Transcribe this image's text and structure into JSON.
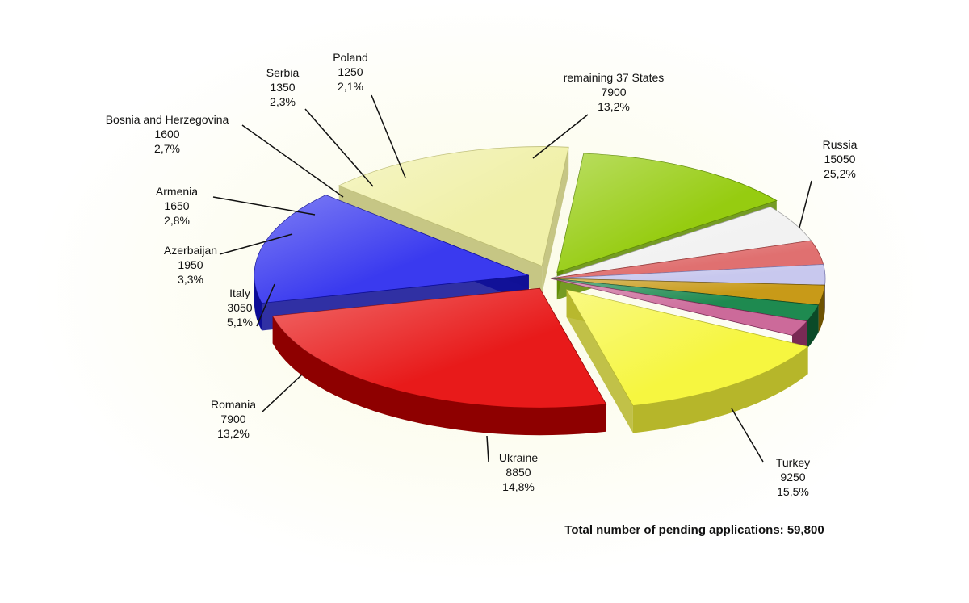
{
  "chart_data": {
    "type": "pie",
    "title": "",
    "slices": [
      {
        "label": "Russia",
        "value": 15050,
        "percent": "25,2%",
        "color": "#e81a1a",
        "side": "#8e0000"
      },
      {
        "label": "Turkey",
        "value": 9250,
        "percent": "15,5%",
        "color": "#3a3aef",
        "side": "#0c0c96"
      },
      {
        "label": "Ukraine",
        "value": 8850,
        "percent": "14,8%",
        "color": "#f0f0a8",
        "side": "#bcbc72"
      },
      {
        "label": "Romania",
        "value": 7900,
        "percent": "13,2%",
        "color": "#96cc10",
        "side": "#5d8a00"
      },
      {
        "label": "Italy",
        "value": 3050,
        "percent": "5,1%",
        "color": "#f2f2f2",
        "side": "#9a9a9a"
      },
      {
        "label": "Azerbaijan",
        "value": 1950,
        "percent": "3,3%",
        "color": "#e07070",
        "side": "#9a3a3a"
      },
      {
        "label": "Armenia",
        "value": 1650,
        "percent": "2,8%",
        "color": "#c8c8ee",
        "side": "#7a7ab0"
      },
      {
        "label": "Bosnia and Herzegovina",
        "value": 1600,
        "percent": "2,7%",
        "color": "#c89a18",
        "side": "#6e5200"
      },
      {
        "label": "Serbia",
        "value": 1350,
        "percent": "2,3%",
        "color": "#1e8a50",
        "side": "#0b4a28"
      },
      {
        "label": "Poland",
        "value": 1250,
        "percent": "2,1%",
        "color": "#cc6a9a",
        "side": "#7a2a55"
      },
      {
        "label": "remaining 37 States",
        "value": 7900,
        "percent": "13,2%",
        "color": "#f6f640",
        "side": "#b6b62a"
      }
    ]
  },
  "footer": {
    "total_text": "Total number of pending applications: 59,800"
  }
}
